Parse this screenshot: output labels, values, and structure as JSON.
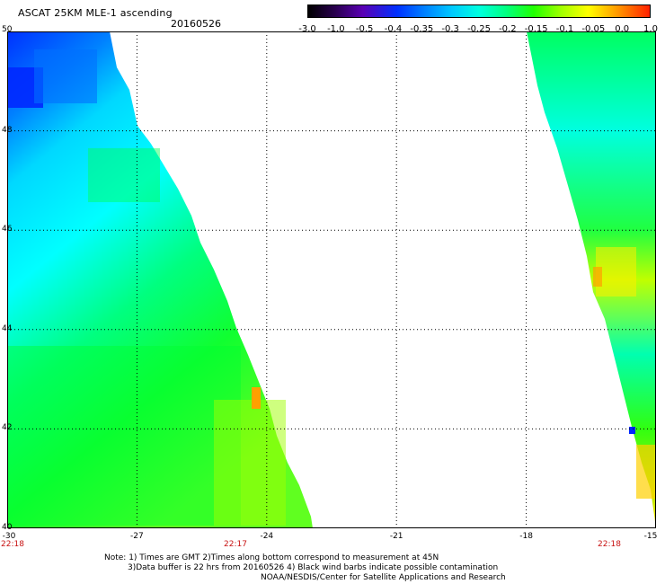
{
  "header": {
    "title": "ASCAT 25KM MLE-1 ascending",
    "date": "20160526"
  },
  "colorbar": {
    "labels": [
      "-3.0",
      "-1.0",
      "-0.5",
      "-0.4",
      "-0.35",
      "-0.3",
      "-0.25",
      "-0.2",
      "-0.15",
      "-0.1",
      "-0.05",
      "0.0",
      "1.0"
    ]
  },
  "map": {
    "lat_labels": [
      "50",
      "48",
      "46",
      "44",
      "42",
      "40"
    ],
    "lon_labels": [
      "-30",
      "-27",
      "-24",
      "-21",
      "-18",
      "-15"
    ],
    "time_labels": [
      "22:18",
      "22:17",
      "22:18"
    ],
    "colors": {
      "deep_blue": "#0028ff",
      "blue": "#0080ff",
      "cyan": "#00ffff",
      "green": "#00ff40",
      "yellow": "#ffff00",
      "orange": "#ffa000"
    }
  },
  "notes": {
    "line1": "Note: 1) Times are GMT 2)Times along bottom correspond to measurement at 45N",
    "line2": "3)Data buffer is 22 hrs from 20160526 4) Black wind barbs indicate possible contamination",
    "line3": "NOAA/NESDIS/Center for Satellite Applications and Research"
  }
}
